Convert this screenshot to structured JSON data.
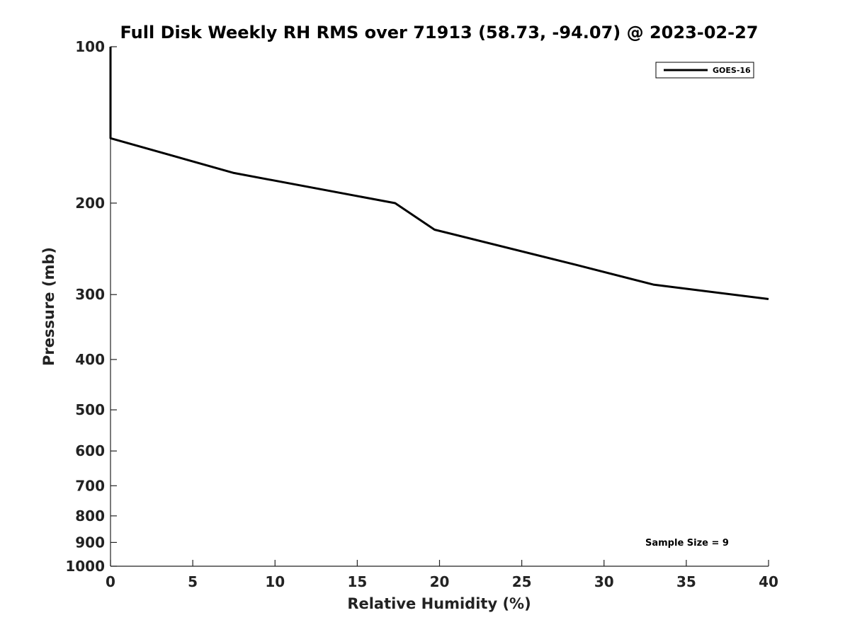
{
  "chart_data": {
    "type": "line",
    "title": "Full Disk Weekly RH RMS over 71913 (58.73, -94.07) @ 2023-02-27",
    "xlabel": "Relative Humidity (%)",
    "ylabel": "Pressure (mb)",
    "xlim": [
      0,
      40
    ],
    "ylim": [
      1000,
      100
    ],
    "yscale": "log",
    "y_inverted": true,
    "x_ticks": [
      0,
      5,
      10,
      15,
      20,
      25,
      30,
      35,
      40
    ],
    "y_ticks": [
      100,
      200,
      300,
      400,
      500,
      600,
      700,
      800,
      900,
      1000
    ],
    "grid": false,
    "legend_position": "top-right",
    "series": [
      {
        "name": "GOES-16",
        "color": "#000000",
        "points": [
          {
            "x": 0,
            "y": 100
          },
          {
            "x": 0,
            "y": 150
          },
          {
            "x": 7.5,
            "y": 175
          },
          {
            "x": 17.3,
            "y": 200
          },
          {
            "x": 19.7,
            "y": 225
          },
          {
            "x": 28.3,
            "y": 263
          },
          {
            "x": 33,
            "y": 287
          },
          {
            "x": 40,
            "y": 306
          }
        ]
      }
    ],
    "annotations": [
      {
        "text": "Sample Size = 9"
      }
    ]
  }
}
